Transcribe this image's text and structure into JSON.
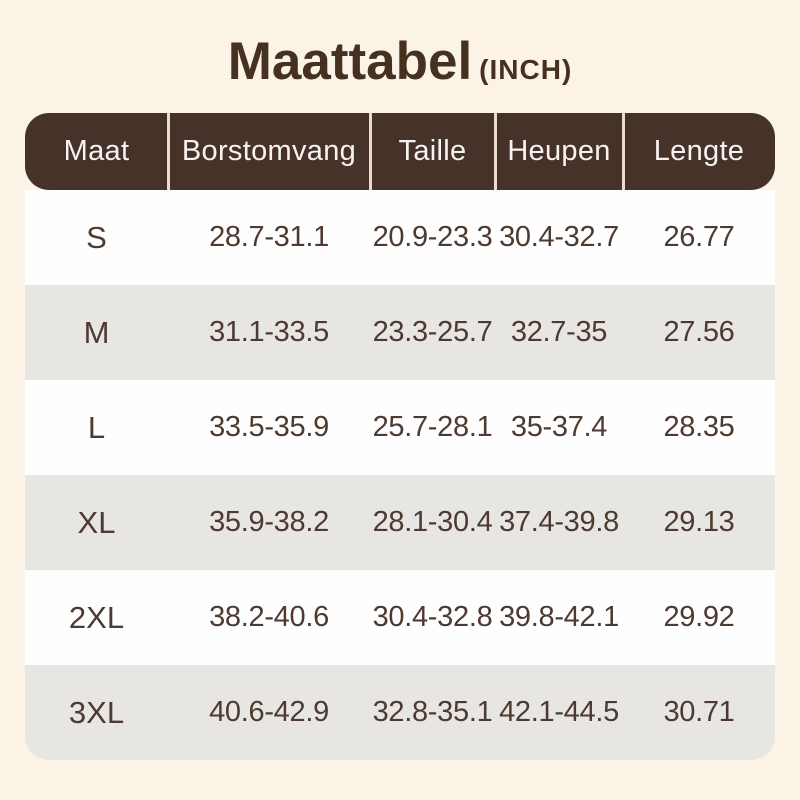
{
  "title": {
    "main": "Maattabel",
    "unit": "(INCH)"
  },
  "colors": {
    "page_background": "#fbf3e6",
    "header_background": "#47322a",
    "header_text": "#f6f3f0",
    "row_white": "#fefefe",
    "row_gray": "#e8e6e3",
    "body_text": "#4d3a30",
    "title_text": "#46301f",
    "header_divider": "#e9ddc9"
  },
  "chart_data": {
    "type": "table",
    "title": "Maattabel (INCH)",
    "unit": "INCH",
    "columns": [
      "Maat",
      "Borstomvang",
      "Taille",
      "Heupen",
      "Lengte"
    ],
    "rows": [
      [
        "S",
        "28.7-31.1",
        "20.9-23.3",
        "30.4-32.7",
        "26.77"
      ],
      [
        "M",
        "31.1-33.5",
        "23.3-25.7",
        "32.7-35",
        "27.56"
      ],
      [
        "L",
        "33.5-35.9",
        "25.7-28.1",
        "35-37.4",
        "28.35"
      ],
      [
        "XL",
        "35.9-38.2",
        "28.1-30.4",
        "37.4-39.8",
        "29.13"
      ],
      [
        "2XL",
        "38.2-40.6",
        "30.4-32.8",
        "39.8-42.1",
        "29.92"
      ],
      [
        "3XL",
        "40.6-42.9",
        "32.8-35.1",
        "42.1-44.5",
        "30.71"
      ]
    ]
  }
}
